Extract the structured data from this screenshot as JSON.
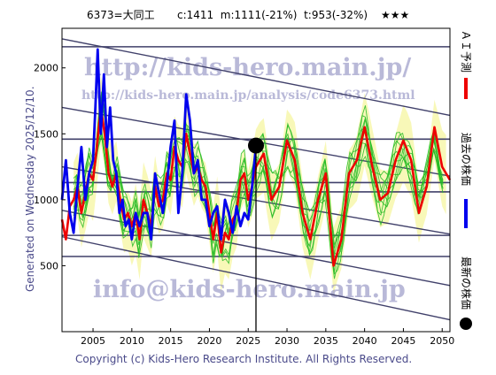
{
  "header": {
    "code_name": "6373=大同工",
    "stats": "c:1411  m:1111(-21%)  t:953(-32%)",
    "stars": "★★★"
  },
  "left_caption": "Generated on Wednesday 2025/12/10.",
  "footer": "Copyright (c) Kids-Hero Research Institute. All Rights Reserved.",
  "watermarks": {
    "line1": "http://kids-hero.main.jp/",
    "line2": "http://kids-hero.main.jp/analysis/code6373.html",
    "line3": "info@kids-hero.main.jp"
  },
  "legend": {
    "forecast": "ＡＩ予測",
    "past": "過去の株価",
    "latest": "最新の株価"
  },
  "colors": {
    "price": "#0000ee",
    "forecast": "#ee0000",
    "ensemble": "#22bb22",
    "band_fill": "#f5f5a0",
    "trend_line": "#40406a",
    "watermark": "#8080b8"
  },
  "chart_data": {
    "type": "line",
    "xlim": [
      2001,
      2051
    ],
    "ylim": [
      0,
      2300
    ],
    "x_ticks": [
      2005,
      2010,
      2015,
      2020,
      2025,
      2030,
      2035,
      2040,
      2045,
      2050
    ],
    "y_ticks": [
      500,
      1000,
      1500,
      2000
    ],
    "latest_point": {
      "x": 2026.0,
      "y": 1411
    },
    "horizontal_levels": [
      2160,
      1460,
      1130,
      1060,
      730,
      570
    ],
    "trend_lines": [
      {
        "x": [
          2001,
          2051
        ],
        "y": [
          2220,
          1640
        ]
      },
      {
        "x": [
          2001,
          2051
        ],
        "y": [
          1700,
          1180
        ]
      },
      {
        "x": [
          2001,
          2051
        ],
        "y": [
          1250,
          740
        ]
      },
      {
        "x": [
          2001,
          2051
        ],
        "y": [
          920,
          350
        ]
      },
      {
        "x": [
          2001,
          2051
        ],
        "y": [
          720,
          90
        ]
      }
    ],
    "series": [
      {
        "name": "過去の株価",
        "x": [
          2001.0,
          2001.5,
          2002.0,
          2002.5,
          2003.0,
          2003.5,
          2004.0,
          2004.5,
          2005.0,
          2005.3,
          2005.6,
          2006.0,
          2006.4,
          2006.8,
          2007.2,
          2007.6,
          2008.0,
          2008.4,
          2008.8,
          2009.2,
          2009.6,
          2010.0,
          2010.5,
          2011.0,
          2011.5,
          2012.0,
          2012.5,
          2013.0,
          2013.5,
          2014.0,
          2014.5,
          2015.0,
          2015.5,
          2016.0,
          2016.5,
          2017.0,
          2017.5,
          2018.0,
          2018.5,
          2019.0,
          2019.5,
          2020.0,
          2020.5,
          2021.0,
          2021.5,
          2022.0,
          2022.5,
          2023.0,
          2023.5,
          2024.0,
          2024.5,
          2025.0,
          2025.5,
          2026.0
        ],
        "y": [
          1000,
          1300,
          900,
          750,
          1100,
          1400,
          1000,
          1200,
          1300,
          1700,
          2140,
          1500,
          1950,
          1400,
          1700,
          1300,
          1200,
          900,
          1000,
          800,
          850,
          700,
          900,
          800,
          900,
          900,
          700,
          1200,
          1050,
          900,
          1100,
          1400,
          1600,
          900,
          1200,
          1800,
          1600,
          1200,
          1300,
          1000,
          1000,
          800,
          900,
          950,
          700,
          1000,
          900,
          750,
          950,
          800,
          900,
          850,
          1100,
          1411
        ]
      },
      {
        "name": "ＡＩ予測",
        "x": [
          2001.0,
          2001.5,
          2002.0,
          2002.5,
          2003.0,
          2003.5,
          2004.0,
          2004.5,
          2005.0,
          2005.5,
          2006.0,
          2006.5,
          2007.0,
          2007.5,
          2008.0,
          2008.5,
          2009.0,
          2009.5,
          2010.0,
          2010.5,
          2011.0,
          2011.5,
          2012.0,
          2012.5,
          2013.0,
          2013.5,
          2014.0,
          2014.5,
          2015.0,
          2015.5,
          2016.0,
          2016.5,
          2017.0,
          2017.5,
          2018.0,
          2018.5,
          2019.0,
          2019.5,
          2020.0,
          2020.5,
          2021.0,
          2021.5,
          2022.0,
          2022.5,
          2023.0,
          2023.5,
          2024.0,
          2024.5,
          2025.0,
          2025.5,
          2026.0,
          2027.0,
          2028.0,
          2029.0,
          2030.0,
          2031.0,
          2032.0,
          2033.0,
          2034.0,
          2035.0,
          2036.0,
          2037.0,
          2038.0,
          2039.0,
          2040.0,
          2041.0,
          2042.0,
          2043.0,
          2044.0,
          2045.0,
          2046.0,
          2047.0,
          2048.0,
          2049.0,
          2050.0,
          2051.0
        ],
        "y": [
          850,
          700,
          950,
          1000,
          1100,
          900,
          1050,
          1200,
          1150,
          1400,
          1700,
          1500,
          1200,
          1100,
          1200,
          1000,
          850,
          900,
          800,
          900,
          700,
          1000,
          900,
          800,
          1100,
          950,
          1000,
          1200,
          1150,
          1400,
          1300,
          1250,
          1500,
          1350,
          1200,
          1250,
          1150,
          1100,
          900,
          700,
          900,
          600,
          750,
          700,
          850,
          900,
          1150,
          1200,
          1000,
          1100,
          1250,
          1350,
          1000,
          1100,
          1450,
          1300,
          900,
          700,
          1000,
          1200,
          500,
          700,
          1200,
          1300,
          1550,
          1250,
          1000,
          1050,
          1300,
          1450,
          1300,
          900,
          1100,
          1550,
          1250,
          1150
        ]
      }
    ]
  }
}
